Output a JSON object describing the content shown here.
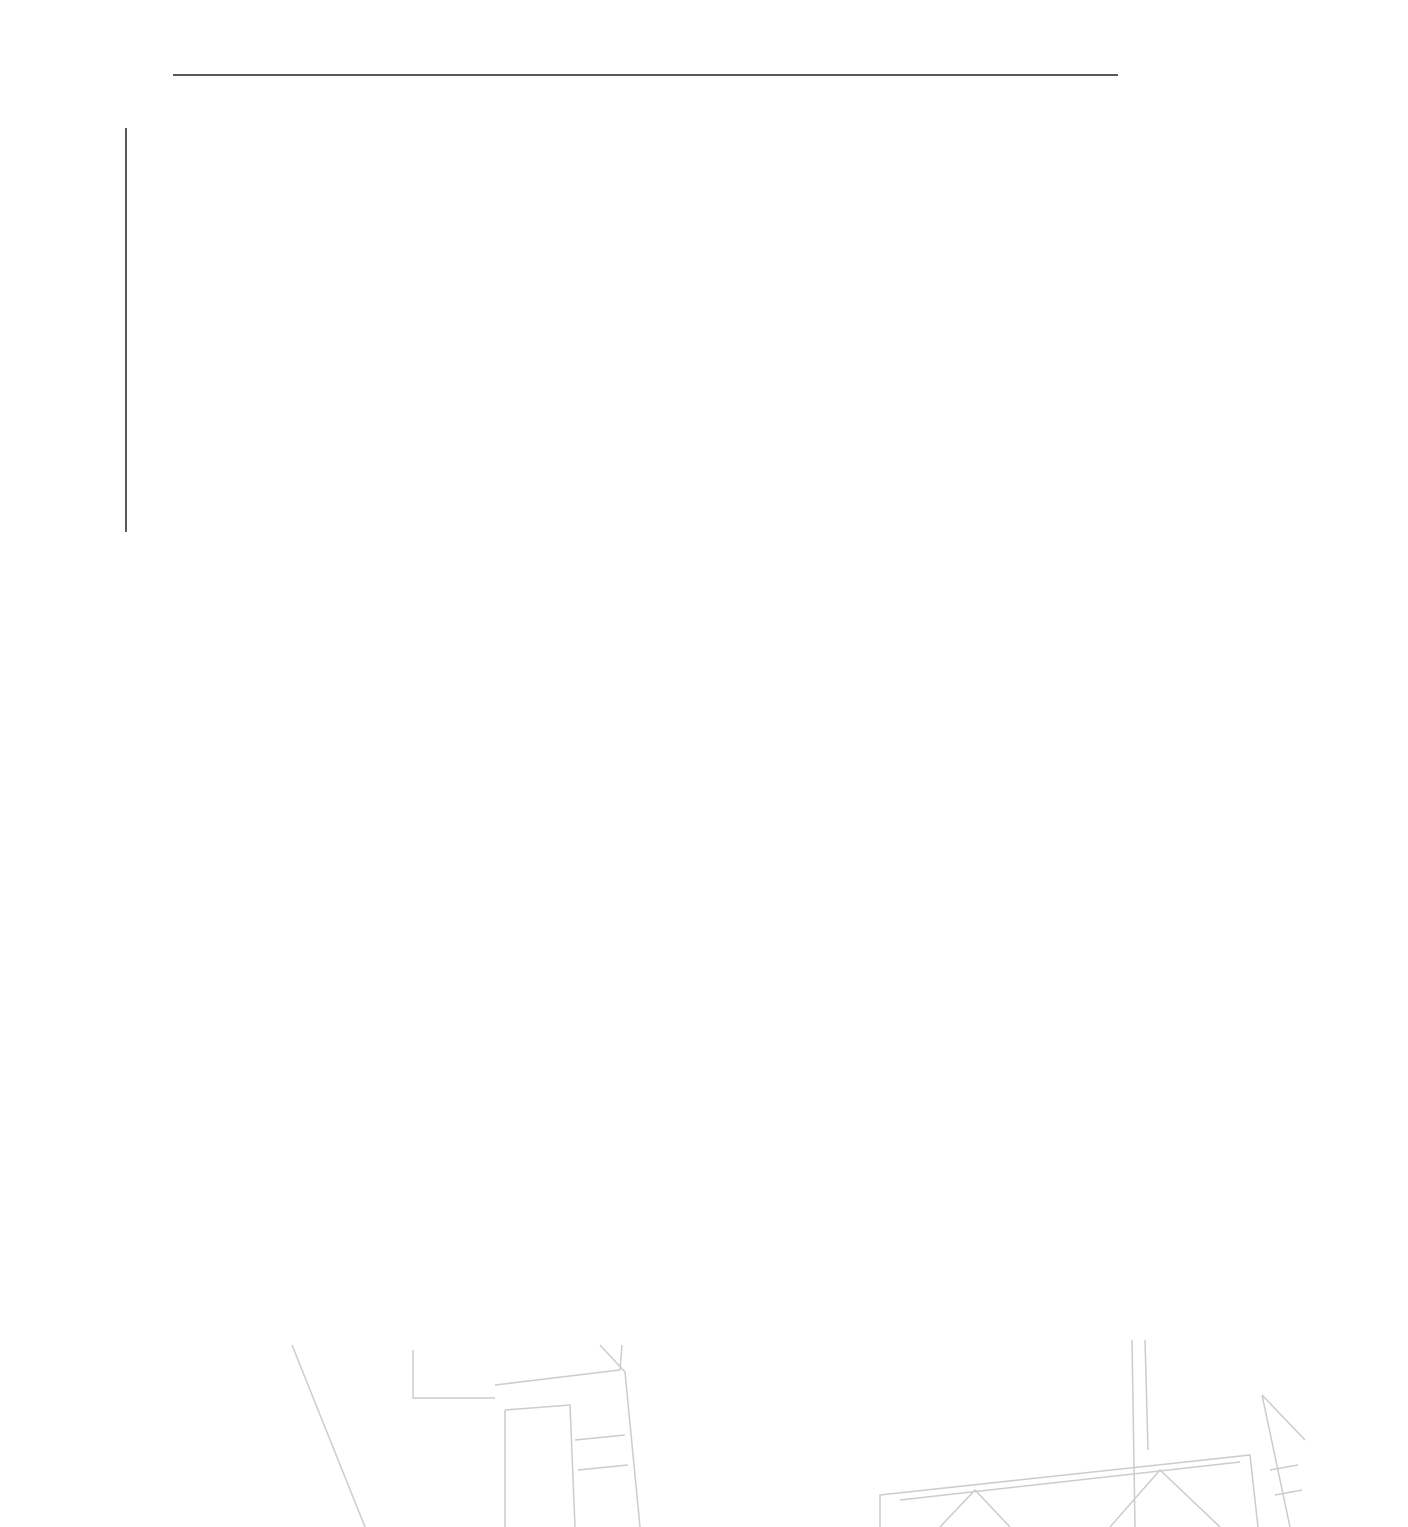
{
  "dimensions": {
    "horizontal": [
      350,
      350,
      350
    ],
    "vertical": [
      200,
      200
    ]
  }
}
